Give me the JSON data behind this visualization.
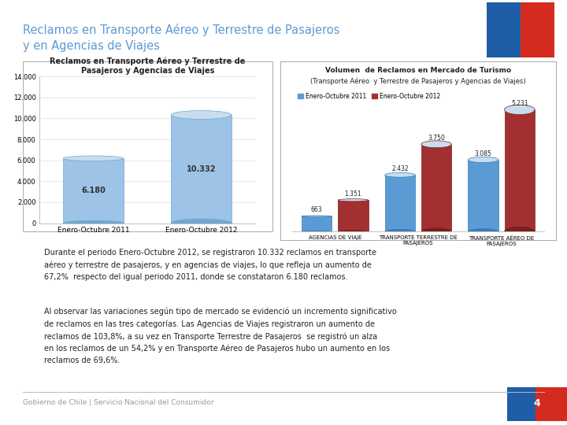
{
  "page_title_line1": "Reclamos en Transporte Aéreo y Terrestre de Pasajeros",
  "page_title_line2": "y en Agencias de Viajes",
  "page_title_color": "#5B9BD5",
  "bg_color": "#FFFFFF",
  "chart1_title_line1": "Reclamos en Transporte Aéreo y Terrestre de",
  "chart1_title_line2": "Pasajeros y Agencias de Viajes",
  "chart1_categories": [
    "Enero-Octubre 2011",
    "Enero-Octubre 2012"
  ],
  "chart1_values": [
    6180,
    10332
  ],
  "chart1_bar_color": "#9DC3E6",
  "chart1_bar_color_dark": "#6FA8D0",
  "chart1_ylim": [
    0,
    14000
  ],
  "chart1_yticks": [
    0,
    2000,
    4000,
    6000,
    8000,
    10000,
    12000,
    14000
  ],
  "chart2_title_line1": "Volumen  de Reclamos en Mercado de Turismo",
  "chart2_title_line2": "(Transporte Aéreo  y Terrestre de Pasajeros y Agencias de Viajes)",
  "chart2_values_2011": [
    663,
    2432,
    3085
  ],
  "chart2_values_2012": [
    1351,
    3750,
    5231
  ],
  "chart2_color_2011": "#5B9BD5",
  "chart2_color_2011_dark": "#3A7AB5",
  "chart2_color_2012": "#A33030",
  "chart2_color_2012_dark": "#7B1E1E",
  "chart2_legend_2011": "Enero-Octubre 2011",
  "chart2_legend_2012": "Enero-Octubre 2012",
  "body_text_1": "Durante el periodo Enero-Octubre 2012, se registraron 10.332 reclamos en transporte\naéreo y terrestre de pasajeros, y en agencias de viajes, lo que refleja un aumento de\n67,2%  respecto del igual periodo 2011, donde se constataron 6.180 reclamos.",
  "body_text_2": "Al observar las variaciones según tipo de mercado se evidenció un incremento significativo\nde reclamos en las tres categorías. Las Agencias de Viajes registraron un aumento de\nreclamos de 103,8%, a su vez en Transporte Terrestre de Pasajeros  se registró un alza\nen los reclamos de un 54,2% y en Transporte Aéreo de Pasajeros hubo un aumento en los\nreclamos de 69,6%.",
  "footer_text": "Gobierno de Chile | Servicio Nacional del Consumidor",
  "page_number": "4",
  "flag_blue": "#1E5EA7",
  "flag_red": "#D52B1E",
  "footer_blue": "#1E5EA7",
  "footer_red": "#D52B1E"
}
